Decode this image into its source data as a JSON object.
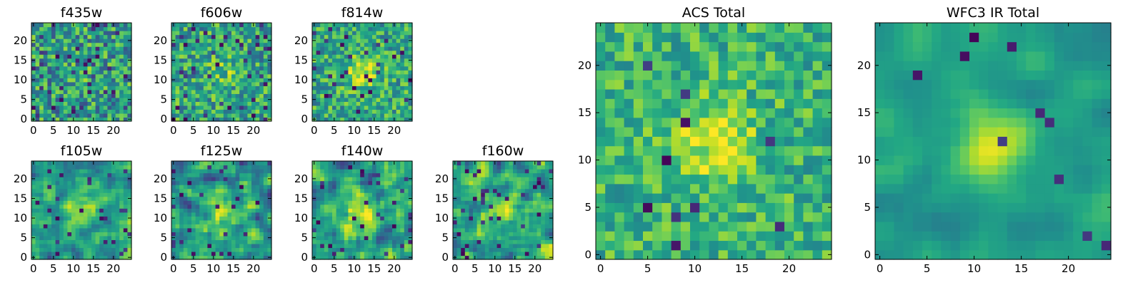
{
  "chart_data": [
    {
      "type": "heatmap",
      "title": "f435w",
      "size": 25,
      "colormap": "viridis",
      "xticks": [
        "0",
        "5",
        "10",
        "15",
        "20"
      ],
      "yticks": [
        "0",
        "5",
        "10",
        "15",
        "20"
      ],
      "seed": 11,
      "blob": {
        "x": 12,
        "y": 12,
        "strength": 0.05,
        "sigma": 3
      },
      "noise": 0.6,
      "smooth": 0,
      "dark_spots": 0.08,
      "bias": 0.55
    },
    {
      "type": "heatmap",
      "title": "f606w",
      "size": 25,
      "colormap": "viridis",
      "xticks": [
        "0",
        "5",
        "10",
        "15",
        "20"
      ],
      "yticks": [
        "0",
        "5",
        "10",
        "15",
        "20"
      ],
      "seed": 23,
      "blob": {
        "x": 12,
        "y": 12,
        "strength": 0.15,
        "sigma": 3
      },
      "noise": 0.55,
      "smooth": 0,
      "dark_spots": 0.06,
      "bias": 0.58
    },
    {
      "type": "heatmap",
      "title": "f814w",
      "size": 25,
      "colormap": "viridis",
      "xticks": [
        "0",
        "5",
        "10",
        "15",
        "20"
      ],
      "yticks": [
        "0",
        "5",
        "10",
        "15",
        "20"
      ],
      "seed": 37,
      "blob": {
        "x": 12,
        "y": 12,
        "strength": 0.3,
        "sigma": 3
      },
      "noise": 0.5,
      "smooth": 0,
      "dark_spots": 0.05,
      "bias": 0.6
    },
    {
      "type": "heatmap",
      "title": "f105w",
      "size": 25,
      "colormap": "viridis",
      "xticks": [
        "0",
        "5",
        "10",
        "15",
        "20"
      ],
      "yticks": [
        "0",
        "5",
        "10",
        "15",
        "20"
      ],
      "seed": 41,
      "blob": {
        "x": 12,
        "y": 12,
        "strength": 0.35,
        "sigma": 3
      },
      "noise": 0.5,
      "smooth": 1,
      "dark_spots": 0.05,
      "bias": 0.55
    },
    {
      "type": "heatmap",
      "title": "f125w",
      "size": 25,
      "colormap": "viridis",
      "xticks": [
        "0",
        "5",
        "10",
        "15",
        "20"
      ],
      "yticks": [
        "0",
        "5",
        "10",
        "15",
        "20"
      ],
      "seed": 53,
      "blob": {
        "x": 12,
        "y": 12,
        "strength": 0.2,
        "sigma": 3
      },
      "noise": 0.6,
      "smooth": 1,
      "dark_spots": 0.06,
      "bias": 0.55
    },
    {
      "type": "heatmap",
      "title": "f140w",
      "size": 25,
      "colormap": "viridis",
      "xticks": [
        "0",
        "5",
        "10",
        "15",
        "20"
      ],
      "yticks": [
        "0",
        "5",
        "10",
        "15",
        "20"
      ],
      "seed": 67,
      "blob": {
        "x": 12,
        "y": 12,
        "strength": 0.25,
        "sigma": 3
      },
      "noise": 0.6,
      "smooth": 1,
      "dark_spots": 0.06,
      "bias": 0.58
    },
    {
      "type": "heatmap",
      "title": "f160w",
      "size": 25,
      "colormap": "viridis",
      "xticks": [
        "0",
        "5",
        "10",
        "15",
        "20"
      ],
      "yticks": [
        "0",
        "5",
        "10",
        "15",
        "20"
      ],
      "seed": 79,
      "blob": {
        "x": 12,
        "y": 12,
        "strength": 0.3,
        "sigma": 3
      },
      "noise": 0.55,
      "smooth": 1,
      "dark_spots": 0.06,
      "bias": 0.58
    },
    {
      "type": "heatmap",
      "title": "ACS Total",
      "size": 25,
      "colormap": "viridis",
      "xticks": [
        "0",
        "5",
        "10",
        "15",
        "20"
      ],
      "yticks": [
        "0",
        "5",
        "10",
        "15",
        "20"
      ],
      "seed": 97,
      "blob": {
        "x": 12,
        "y": 12,
        "strength": 0.3,
        "sigma": 3
      },
      "noise": 0.4,
      "smooth": 0,
      "dark_spots": 0.02,
      "bias": 0.65
    },
    {
      "type": "heatmap",
      "title": "WFC3 IR Total",
      "size": 25,
      "colormap": "viridis",
      "xticks": [
        "0",
        "5",
        "10",
        "15",
        "20"
      ],
      "yticks": [
        "0",
        "5",
        "10",
        "15",
        "20"
      ],
      "seed": 113,
      "blob": {
        "x": 12,
        "y": 12,
        "strength": 0.35,
        "sigma": 3
      },
      "noise": 0.35,
      "smooth": 2,
      "dark_spots": 0.01,
      "bias": 0.55
    }
  ]
}
